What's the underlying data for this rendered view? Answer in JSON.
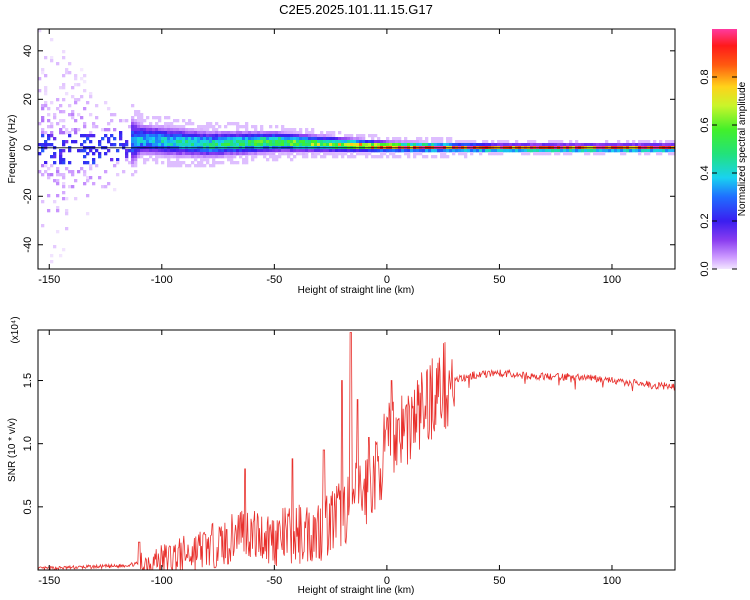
{
  "title": "C2E5.2025.101.11.15.G17",
  "chart_data": [
    {
      "type": "heatmap",
      "xlabel": "Height of straight line (km)",
      "ylabel": "Frequency (Hz)",
      "xlim": [
        -155,
        128
      ],
      "ylim": [
        -50,
        49
      ],
      "xticks": [
        -150,
        -100,
        -50,
        0,
        50,
        100
      ],
      "yticks": [
        -40,
        -20,
        0,
        20,
        40
      ],
      "colorbar": {
        "label": "Normalized spectral amplitude",
        "range": [
          0,
          1
        ],
        "ticks": [
          "0.0",
          "0.2",
          "0.4",
          "0.6",
          "0.8"
        ],
        "colormap": "rainbow (violet → blue → cyan → green → yellow → red)"
      },
      "description_points": [
        {
          "x": -150,
          "center_hz": 0,
          "spread_hz": 45,
          "amplitude": 0.15
        },
        {
          "x": -125,
          "center_hz": 0,
          "spread_hz": 20,
          "amplitude": 0.2
        },
        {
          "x": -110,
          "center_hz": 4,
          "spread_hz": 6,
          "amplitude": 0.4
        },
        {
          "x": -80,
          "center_hz": 2,
          "spread_hz": 5,
          "amplitude": 0.5
        },
        {
          "x": -50,
          "center_hz": 3,
          "spread_hz": 4,
          "amplitude": 0.6
        },
        {
          "x": -25,
          "center_hz": 2,
          "spread_hz": 3,
          "amplitude": 0.7
        },
        {
          "x": 0,
          "center_hz": 1,
          "spread_hz": 2,
          "amplitude": 0.95
        },
        {
          "x": 50,
          "center_hz": 0.5,
          "spread_hz": 1.5,
          "amplitude": 1.0
        },
        {
          "x": 100,
          "center_hz": 0.5,
          "spread_hz": 1.5,
          "amplitude": 1.0
        },
        {
          "x": 125,
          "center_hz": 0.5,
          "spread_hz": 1.5,
          "amplitude": 1.0
        }
      ]
    },
    {
      "type": "line",
      "xlabel": "Height of straight line (km)",
      "ylabel": "SNR (10 * v/v)",
      "y_multiplier": "(x10⁴)",
      "xlim": [
        -155,
        128
      ],
      "ylim": [
        0,
        1.9
      ],
      "xticks": [
        -150,
        -100,
        -50,
        0,
        50,
        100
      ],
      "yticks": [
        0.5,
        1.0,
        1.5
      ],
      "series_color": "#e8302c",
      "series": [
        {
          "x": [
            -155,
            -140,
            -120,
            -110,
            -100,
            -90,
            -80,
            -70,
            -65,
            -60,
            -50,
            -40,
            -30,
            -20,
            -15,
            -10,
            -5,
            0,
            5,
            10,
            15,
            20,
            25,
            30,
            40,
            50,
            60,
            70,
            80,
            90,
            100,
            110,
            120,
            128
          ],
          "values": [
            0.01,
            0.02,
            0.03,
            0.05,
            0.08,
            0.12,
            0.18,
            0.22,
            0.35,
            0.28,
            0.25,
            0.28,
            0.32,
            0.45,
            0.55,
            0.62,
            0.75,
            0.98,
            1.12,
            1.15,
            1.25,
            1.38,
            1.45,
            1.5,
            1.55,
            1.56,
            1.54,
            1.53,
            1.53,
            1.52,
            1.5,
            1.48,
            1.46,
            1.45
          ]
        }
      ],
      "spikes": [
        {
          "x": -110,
          "y": 0.22
        },
        {
          "x": -63,
          "y": 0.8
        },
        {
          "x": -42,
          "y": 0.88
        },
        {
          "x": -28,
          "y": 0.95
        },
        {
          "x": -20,
          "y": 1.5
        },
        {
          "x": -16,
          "y": 1.88
        },
        {
          "x": -13,
          "y": 1.35
        },
        {
          "x": -8,
          "y": 1.05
        },
        {
          "x": 2,
          "y": 1.5
        }
      ]
    }
  ]
}
